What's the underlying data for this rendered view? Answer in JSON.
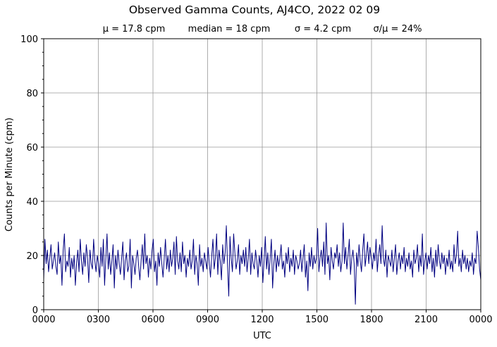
{
  "chart_data": {
    "type": "line",
    "title": "Observed Gamma Counts, AJ4CO, 2022 02 09",
    "subtitle": [
      "μ = 17.8 cpm",
      "median = 18 cpm",
      "σ = 4.2 cpm",
      "σ/μ = 24%"
    ],
    "xlabel": "UTC",
    "ylabel": "Counts per Minute (cpm)",
    "xticks": [
      "0000",
      "0300",
      "0600",
      "0900",
      "1200",
      "1500",
      "1800",
      "2100",
      "0000"
    ],
    "yticks": [
      0,
      20,
      40,
      60,
      80,
      100
    ],
    "yminor_step": 5,
    "ylim": [
      0,
      100
    ],
    "xlim_hours": [
      0,
      24
    ],
    "grid": true,
    "line_color": "#000080",
    "grid_color": "#999999",
    "series": [
      {
        "values": [
          11,
          26,
          17,
          22,
          14,
          19,
          24,
          15,
          18,
          21,
          16,
          13,
          25,
          17,
          20,
          9,
          22,
          28,
          14,
          18,
          16,
          23,
          12,
          19,
          15,
          20,
          9,
          17,
          22,
          14,
          26,
          18,
          13,
          21,
          16,
          24,
          19,
          10,
          22,
          17,
          15,
          26,
          18,
          14,
          20,
          17,
          12,
          23,
          16,
          26,
          9,
          19,
          28,
          15,
          21,
          13,
          18,
          24,
          8,
          20,
          15,
          22,
          17,
          13,
          19,
          25,
          11,
          18,
          21,
          14,
          16,
          26,
          8,
          20,
          17,
          13,
          19,
          22,
          16,
          11,
          18,
          24,
          15,
          28,
          17,
          20,
          12,
          19,
          15,
          22,
          26,
          14,
          18,
          9,
          21,
          16,
          23,
          17,
          12,
          19,
          26,
          15,
          20,
          14,
          22,
          16,
          19,
          25,
          13,
          27,
          18,
          15,
          21,
          14,
          25,
          17,
          20,
          12,
          19,
          16,
          22,
          15,
          18,
          26,
          13,
          20,
          17,
          9,
          24,
          16,
          19,
          14,
          21,
          18,
          15,
          23,
          17,
          12,
          20,
          26,
          15,
          19,
          28,
          13,
          22,
          18,
          11,
          24,
          17,
          21,
          31,
          16,
          5,
          27,
          19,
          14,
          28,
          21,
          15,
          18,
          24,
          13,
          20,
          17,
          22,
          16,
          23,
          14,
          19,
          26,
          13,
          21,
          17,
          15,
          22,
          18,
          12,
          20,
          16,
          23,
          10,
          18,
          27,
          15,
          21,
          13,
          19,
          26,
          8,
          17,
          22,
          14,
          20,
          16,
          19,
          24,
          15,
          18,
          12,
          21,
          17,
          23,
          14,
          19,
          16,
          22,
          13,
          20,
          18,
          15,
          17,
          22,
          14,
          19,
          24,
          12,
          18,
          7,
          21,
          16,
          23,
          15,
          20,
          17,
          19,
          30,
          14,
          19,
          22,
          16,
          25,
          13,
          32,
          17,
          20,
          11,
          23,
          18,
          15,
          21,
          19,
          24,
          16,
          21,
          14,
          18,
          32,
          17,
          23,
          15,
          20,
          26,
          13,
          19,
          22,
          17,
          2,
          21,
          16,
          24,
          18,
          14,
          22,
          28,
          16,
          20,
          25,
          17,
          23,
          19,
          15,
          21,
          18,
          26,
          14,
          20,
          24,
          17,
          31,
          19,
          16,
          22,
          12,
          20,
          18,
          16,
          22,
          14,
          19,
          24,
          13,
          18,
          21,
          15,
          20,
          17,
          23,
          14,
          19,
          16,
          21,
          15,
          18,
          12,
          22,
          17,
          19,
          24,
          14,
          20,
          16,
          28,
          13,
          18,
          21,
          15,
          20,
          17,
          23,
          14,
          19,
          12,
          22,
          16,
          24,
          18,
          15,
          21,
          17,
          20,
          13,
          19,
          16,
          22,
          15,
          18,
          14,
          24,
          17,
          20,
          29,
          16,
          19,
          14,
          22,
          17,
          20,
          15,
          19,
          14,
          18,
          16,
          21,
          13,
          19,
          17,
          29,
          23,
          15,
          11
        ]
      }
    ]
  }
}
